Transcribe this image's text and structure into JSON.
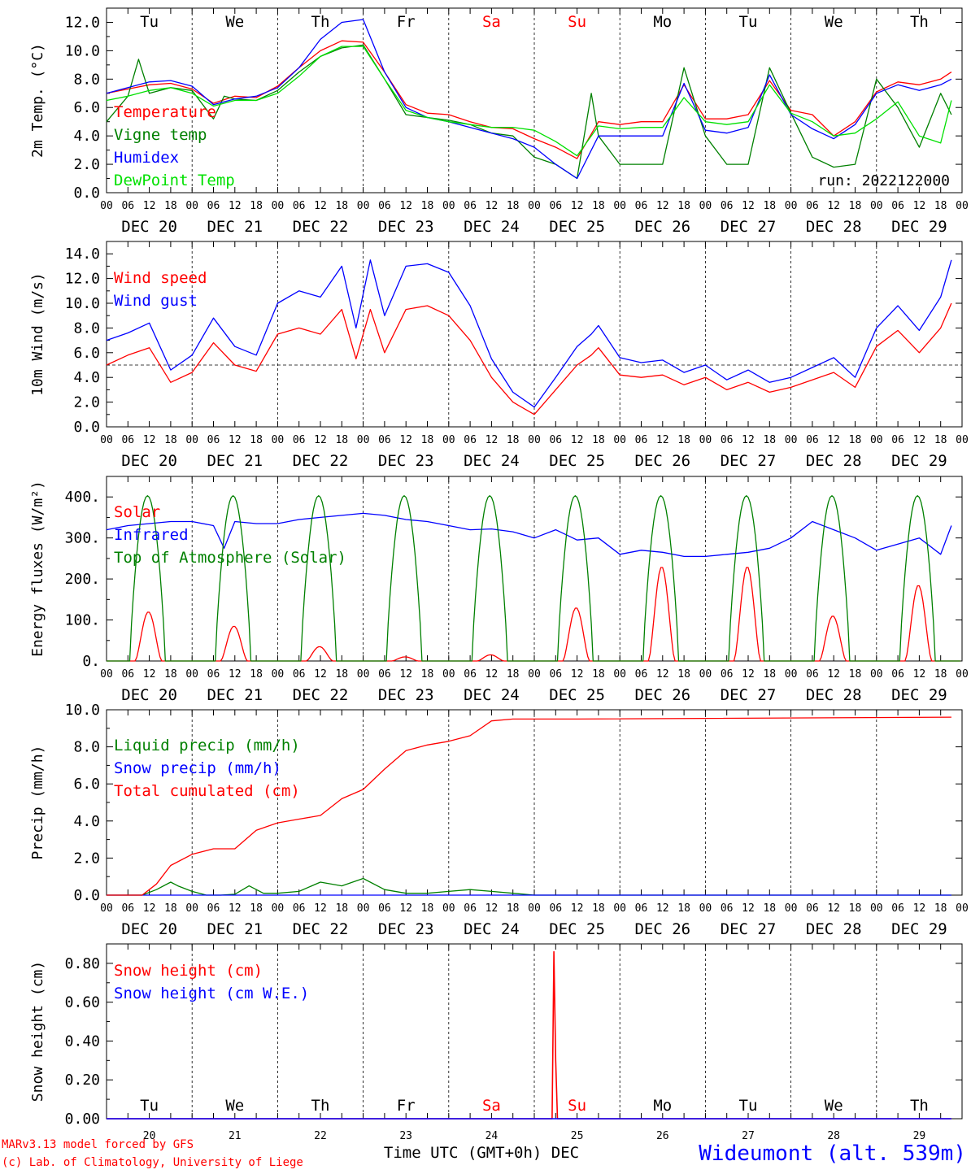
{
  "colors": {
    "red": "#ff0000",
    "green": "#008000",
    "blue": "#0000ff",
    "lightgreen": "#00e000",
    "black": "#000000"
  },
  "time": {
    "start_day": 20,
    "num_days": 10,
    "day_abbr": [
      "Tu",
      "We",
      "Th",
      "Fr",
      "Sa",
      "Su",
      "Mo",
      "Tu",
      "We",
      "Th"
    ],
    "weekend_days_red": [
      4,
      5
    ],
    "hour_ticks": [
      "00",
      "06",
      "12",
      "18"
    ],
    "day_labels": [
      "DEC 20",
      "DEC 21",
      "DEC 22",
      "DEC 23",
      "DEC 24",
      "DEC 25",
      "DEC 26",
      "DEC 27",
      "DEC 28",
      "DEC 29"
    ],
    "bottom_day_numbers": [
      "20",
      "21",
      "22",
      "23",
      "24",
      "25",
      "26",
      "27",
      "28",
      "29"
    ],
    "xlabel": "Time UTC (GMT+0h) DEC"
  },
  "footer": {
    "model_line": "MARv3.13 model forced by GFS",
    "credit_line": "(c) Lab. of Climatology, University of Liege",
    "station": "Wideumont (alt. 539m)"
  },
  "chart_data": [
    {
      "type": "line",
      "ylabel": "2m Temp. (°C)",
      "ylim": [
        0,
        13
      ],
      "yticks": [
        "0.0",
        "2.0",
        "4.0",
        "6.0",
        "8.0",
        "10.0",
        "12.0"
      ],
      "ytick_values": [
        0,
        2,
        4,
        6,
        8,
        10,
        12
      ],
      "annotation": "run: 2022122000",
      "legend_placement": "left",
      "series": [
        {
          "name": "Temperature",
          "color": "#ff0000",
          "x": [
            0,
            6,
            12,
            18,
            24,
            30,
            36,
            42,
            48,
            54,
            60,
            66,
            72,
            78,
            84,
            90,
            96,
            102,
            108,
            114,
            120,
            126,
            132,
            138,
            144,
            150,
            156,
            162,
            168,
            174,
            180,
            186,
            192,
            198,
            204,
            210,
            216,
            222,
            228,
            234,
            237
          ],
          "y": [
            7.0,
            7.3,
            7.6,
            7.7,
            7.3,
            6.3,
            6.8,
            6.7,
            7.5,
            8.8,
            10.0,
            10.7,
            10.6,
            8.5,
            6.2,
            5.6,
            5.5,
            5.0,
            4.6,
            4.5,
            3.8,
            3.2,
            2.4,
            5.0,
            4.8,
            5.0,
            5.0,
            7.6,
            5.2,
            5.2,
            5.5,
            7.9,
            5.8,
            5.5,
            4.0,
            5.0,
            7.1,
            7.8,
            7.6,
            8.0,
            8.5
          ]
        },
        {
          "name": "Vigne temp",
          "color": "#008000",
          "x": [
            0,
            6,
            9,
            12,
            18,
            24,
            30,
            33,
            36,
            42,
            48,
            54,
            60,
            66,
            72,
            78,
            84,
            90,
            96,
            102,
            108,
            114,
            120,
            126,
            132,
            136,
            138,
            144,
            150,
            156,
            162,
            168,
            174,
            180,
            186,
            192,
            198,
            204,
            210,
            216,
            222,
            228,
            234,
            237
          ],
          "y": [
            5.0,
            6.8,
            9.4,
            7.0,
            7.4,
            7.2,
            5.2,
            6.8,
            6.6,
            6.5,
            7.2,
            8.5,
            9.6,
            10.2,
            10.4,
            8.0,
            5.5,
            5.3,
            5.1,
            4.8,
            4.2,
            4.0,
            2.5,
            2.0,
            1.0,
            7.0,
            4.0,
            2.0,
            2.0,
            2.0,
            8.8,
            4.0,
            2.0,
            2.0,
            8.8,
            5.6,
            2.5,
            1.8,
            2.0,
            8.0,
            6.0,
            3.2,
            7.0,
            5.5
          ]
        },
        {
          "name": "Humidex",
          "color": "#0000ff",
          "x": [
            0,
            6,
            12,
            18,
            24,
            30,
            36,
            42,
            48,
            54,
            60,
            66,
            72,
            78,
            84,
            90,
            96,
            102,
            108,
            114,
            120,
            126,
            132,
            138,
            144,
            150,
            156,
            162,
            168,
            174,
            180,
            186,
            192,
            198,
            204,
            210,
            216,
            222,
            228,
            234,
            237
          ],
          "y": [
            7.0,
            7.4,
            7.8,
            7.9,
            7.5,
            6.2,
            6.6,
            6.8,
            7.4,
            8.8,
            10.8,
            12.0,
            12.2,
            8.5,
            6.0,
            5.3,
            5.0,
            4.6,
            4.2,
            3.8,
            3.2,
            2.0,
            1.0,
            4.0,
            4.0,
            4.0,
            4.0,
            7.7,
            4.4,
            4.2,
            4.6,
            8.3,
            5.5,
            4.5,
            3.8,
            4.8,
            7.0,
            7.6,
            7.2,
            7.6,
            8.0
          ]
        },
        {
          "name": "DewPoint Temp",
          "color": "#00e000",
          "x": [
            0,
            6,
            12,
            18,
            24,
            30,
            36,
            42,
            48,
            54,
            60,
            66,
            72,
            78,
            84,
            90,
            96,
            102,
            108,
            114,
            120,
            126,
            132,
            138,
            144,
            150,
            156,
            162,
            168,
            174,
            180,
            186,
            192,
            198,
            204,
            210,
            216,
            222,
            228,
            234,
            237
          ],
          "y": [
            6.5,
            6.8,
            7.2,
            7.4,
            7.0,
            6.1,
            6.5,
            6.5,
            7.0,
            8.2,
            9.6,
            10.3,
            10.3,
            8.0,
            5.8,
            5.3,
            5.0,
            4.8,
            4.6,
            4.6,
            4.4,
            3.6,
            2.6,
            4.7,
            4.5,
            4.6,
            4.6,
            6.7,
            5.0,
            4.8,
            5.0,
            7.6,
            5.6,
            5.0,
            4.0,
            4.2,
            5.2,
            6.4,
            4.0,
            3.5,
            6.5
          ]
        }
      ]
    },
    {
      "type": "line",
      "ylabel": "10m Wind (m/s)",
      "ylim": [
        0,
        15
      ],
      "yticks": [
        "0.0",
        "2.0",
        "4.0",
        "6.0",
        "8.0",
        "10.0",
        "12.0",
        "14.0"
      ],
      "ytick_values": [
        0,
        2,
        4,
        6,
        8,
        10,
        12,
        14
      ],
      "reference_line": 5,
      "legend_placement": "left",
      "series": [
        {
          "name": "Wind speed",
          "color": "#ff0000",
          "x": [
            0,
            6,
            12,
            18,
            24,
            30,
            36,
            42,
            48,
            54,
            60,
            66,
            70,
            74,
            78,
            84,
            90,
            96,
            102,
            108,
            114,
            120,
            126,
            132,
            136,
            138,
            144,
            150,
            156,
            162,
            168,
            174,
            180,
            186,
            192,
            198,
            204,
            210,
            216,
            222,
            228,
            234,
            237
          ],
          "y": [
            5.0,
            5.8,
            6.4,
            3.6,
            4.4,
            6.8,
            5.0,
            4.5,
            7.5,
            8.0,
            7.5,
            9.5,
            5.5,
            9.5,
            6.0,
            9.5,
            9.8,
            9.0,
            7.0,
            4.0,
            2.0,
            1.0,
            3.0,
            5.0,
            5.8,
            6.4,
            4.2,
            4.0,
            4.2,
            3.4,
            4.0,
            3.0,
            3.6,
            2.8,
            3.2,
            3.8,
            4.4,
            3.2,
            6.5,
            7.8,
            6.0,
            8.0,
            10.0
          ]
        },
        {
          "name": "Wind gust",
          "color": "#0000ff",
          "x": [
            0,
            6,
            12,
            18,
            24,
            30,
            36,
            42,
            48,
            54,
            60,
            66,
            70,
            74,
            78,
            84,
            90,
            96,
            102,
            108,
            114,
            120,
            126,
            132,
            136,
            138,
            144,
            150,
            156,
            162,
            168,
            174,
            180,
            186,
            192,
            198,
            204,
            210,
            216,
            222,
            228,
            234,
            237
          ],
          "y": [
            7.0,
            7.6,
            8.4,
            4.6,
            5.8,
            8.8,
            6.5,
            5.8,
            10.0,
            11.0,
            10.5,
            13.0,
            8.0,
            13.5,
            9.0,
            13.0,
            13.2,
            12.5,
            9.8,
            5.5,
            2.8,
            1.6,
            4.0,
            6.5,
            7.5,
            8.2,
            5.6,
            5.2,
            5.4,
            4.4,
            5.0,
            3.8,
            4.6,
            3.6,
            4.0,
            4.8,
            5.6,
            4.0,
            8.0,
            9.8,
            7.8,
            10.5,
            13.5
          ]
        }
      ]
    },
    {
      "type": "line",
      "ylabel": "Energy fluxes (W/m²)",
      "ylim": [
        0,
        450
      ],
      "yticks": [
        "0.",
        "100.",
        "200.",
        "300.",
        "400."
      ],
      "ytick_values": [
        0,
        100,
        200,
        300,
        400
      ],
      "legend_placement": "left",
      "series": [
        {
          "name": "Solar",
          "color": "#ff0000",
          "daily_peak": [
            120,
            85,
            35,
            10,
            15,
            130,
            230,
            230,
            110,
            185
          ]
        },
        {
          "name": "Infrared",
          "color": "#0000ff",
          "x": [
            0,
            6,
            12,
            18,
            24,
            30,
            33,
            36,
            42,
            48,
            54,
            60,
            66,
            72,
            78,
            84,
            90,
            96,
            102,
            108,
            114,
            120,
            126,
            132,
            138,
            144,
            150,
            156,
            162,
            168,
            174,
            180,
            186,
            192,
            198,
            204,
            210,
            216,
            222,
            228,
            234,
            237
          ],
          "y": [
            320,
            330,
            335,
            340,
            340,
            330,
            275,
            340,
            335,
            335,
            345,
            350,
            355,
            360,
            355,
            345,
            340,
            330,
            320,
            322,
            315,
            300,
            320,
            295,
            300,
            260,
            270,
            265,
            255,
            255,
            260,
            265,
            275,
            300,
            340,
            320,
            300,
            270,
            285,
            300,
            260,
            330
          ]
        },
        {
          "name": "Top of Atmosphere (Solar)",
          "color": "#008000",
          "daily_peak": [
            403,
            403,
            403,
            403,
            403,
            403,
            403,
            403,
            403,
            403
          ]
        }
      ]
    },
    {
      "type": "line",
      "ylabel": "Precip (mm/h)",
      "ylim": [
        0,
        10
      ],
      "yticks": [
        "0.0",
        "2.0",
        "4.0",
        "6.0",
        "8.0",
        "10.0"
      ],
      "ytick_values": [
        0,
        2,
        4,
        6,
        8,
        10
      ],
      "legend_placement": "left",
      "series": [
        {
          "name": "Liquid precip (mm/h)",
          "color": "#008000",
          "x": [
            0,
            10,
            14,
            18,
            20,
            24,
            28,
            32,
            36,
            40,
            44,
            48,
            54,
            60,
            66,
            72,
            78,
            84,
            90,
            96,
            102,
            108,
            114,
            120,
            126,
            132,
            237
          ],
          "y": [
            0,
            0,
            0.3,
            0.7,
            0.5,
            0.2,
            0,
            0,
            0.05,
            0.5,
            0.1,
            0.1,
            0.2,
            0.7,
            0.5,
            0.9,
            0.3,
            0.1,
            0.1,
            0.2,
            0.3,
            0.2,
            0.1,
            0,
            0,
            0,
            0
          ]
        },
        {
          "name": "Snow precip (mm/h)",
          "color": "#0000ff",
          "x": [
            0,
            237
          ],
          "y": [
            0,
            0
          ]
        },
        {
          "name": "Total cumulated (cm)",
          "color": "#ff0000",
          "x": [
            0,
            10,
            14,
            18,
            24,
            30,
            36,
            42,
            48,
            54,
            60,
            66,
            72,
            78,
            84,
            90,
            96,
            102,
            108,
            114,
            120,
            126,
            132,
            237
          ],
          "y": [
            0,
            0,
            0.6,
            1.6,
            2.2,
            2.5,
            2.5,
            3.5,
            3.9,
            4.1,
            4.3,
            5.2,
            5.7,
            6.8,
            7.8,
            8.1,
            8.3,
            8.6,
            9.4,
            9.5,
            9.5,
            9.5,
            9.5,
            9.6
          ]
        }
      ]
    },
    {
      "type": "line",
      "ylabel": "Snow height (cm)",
      "ylim": [
        0,
        0.9
      ],
      "yticks": [
        "0.00",
        "0.20",
        "0.40",
        "0.60",
        "0.80"
      ],
      "ytick_values": [
        0,
        0.2,
        0.4,
        0.6,
        0.8
      ],
      "legend_placement": "left",
      "series": [
        {
          "name": "Snow height (cm)",
          "color": "#ff0000",
          "x": [
            0,
            125,
            125.5,
            126,
            126.5,
            237
          ],
          "y": [
            0,
            0,
            0.86,
            0.3,
            0,
            0
          ]
        },
        {
          "name": "Snow height (cm W.E.)",
          "color": "#0000ff",
          "x": [
            0,
            237
          ],
          "y": [
            0,
            0
          ]
        }
      ]
    }
  ]
}
